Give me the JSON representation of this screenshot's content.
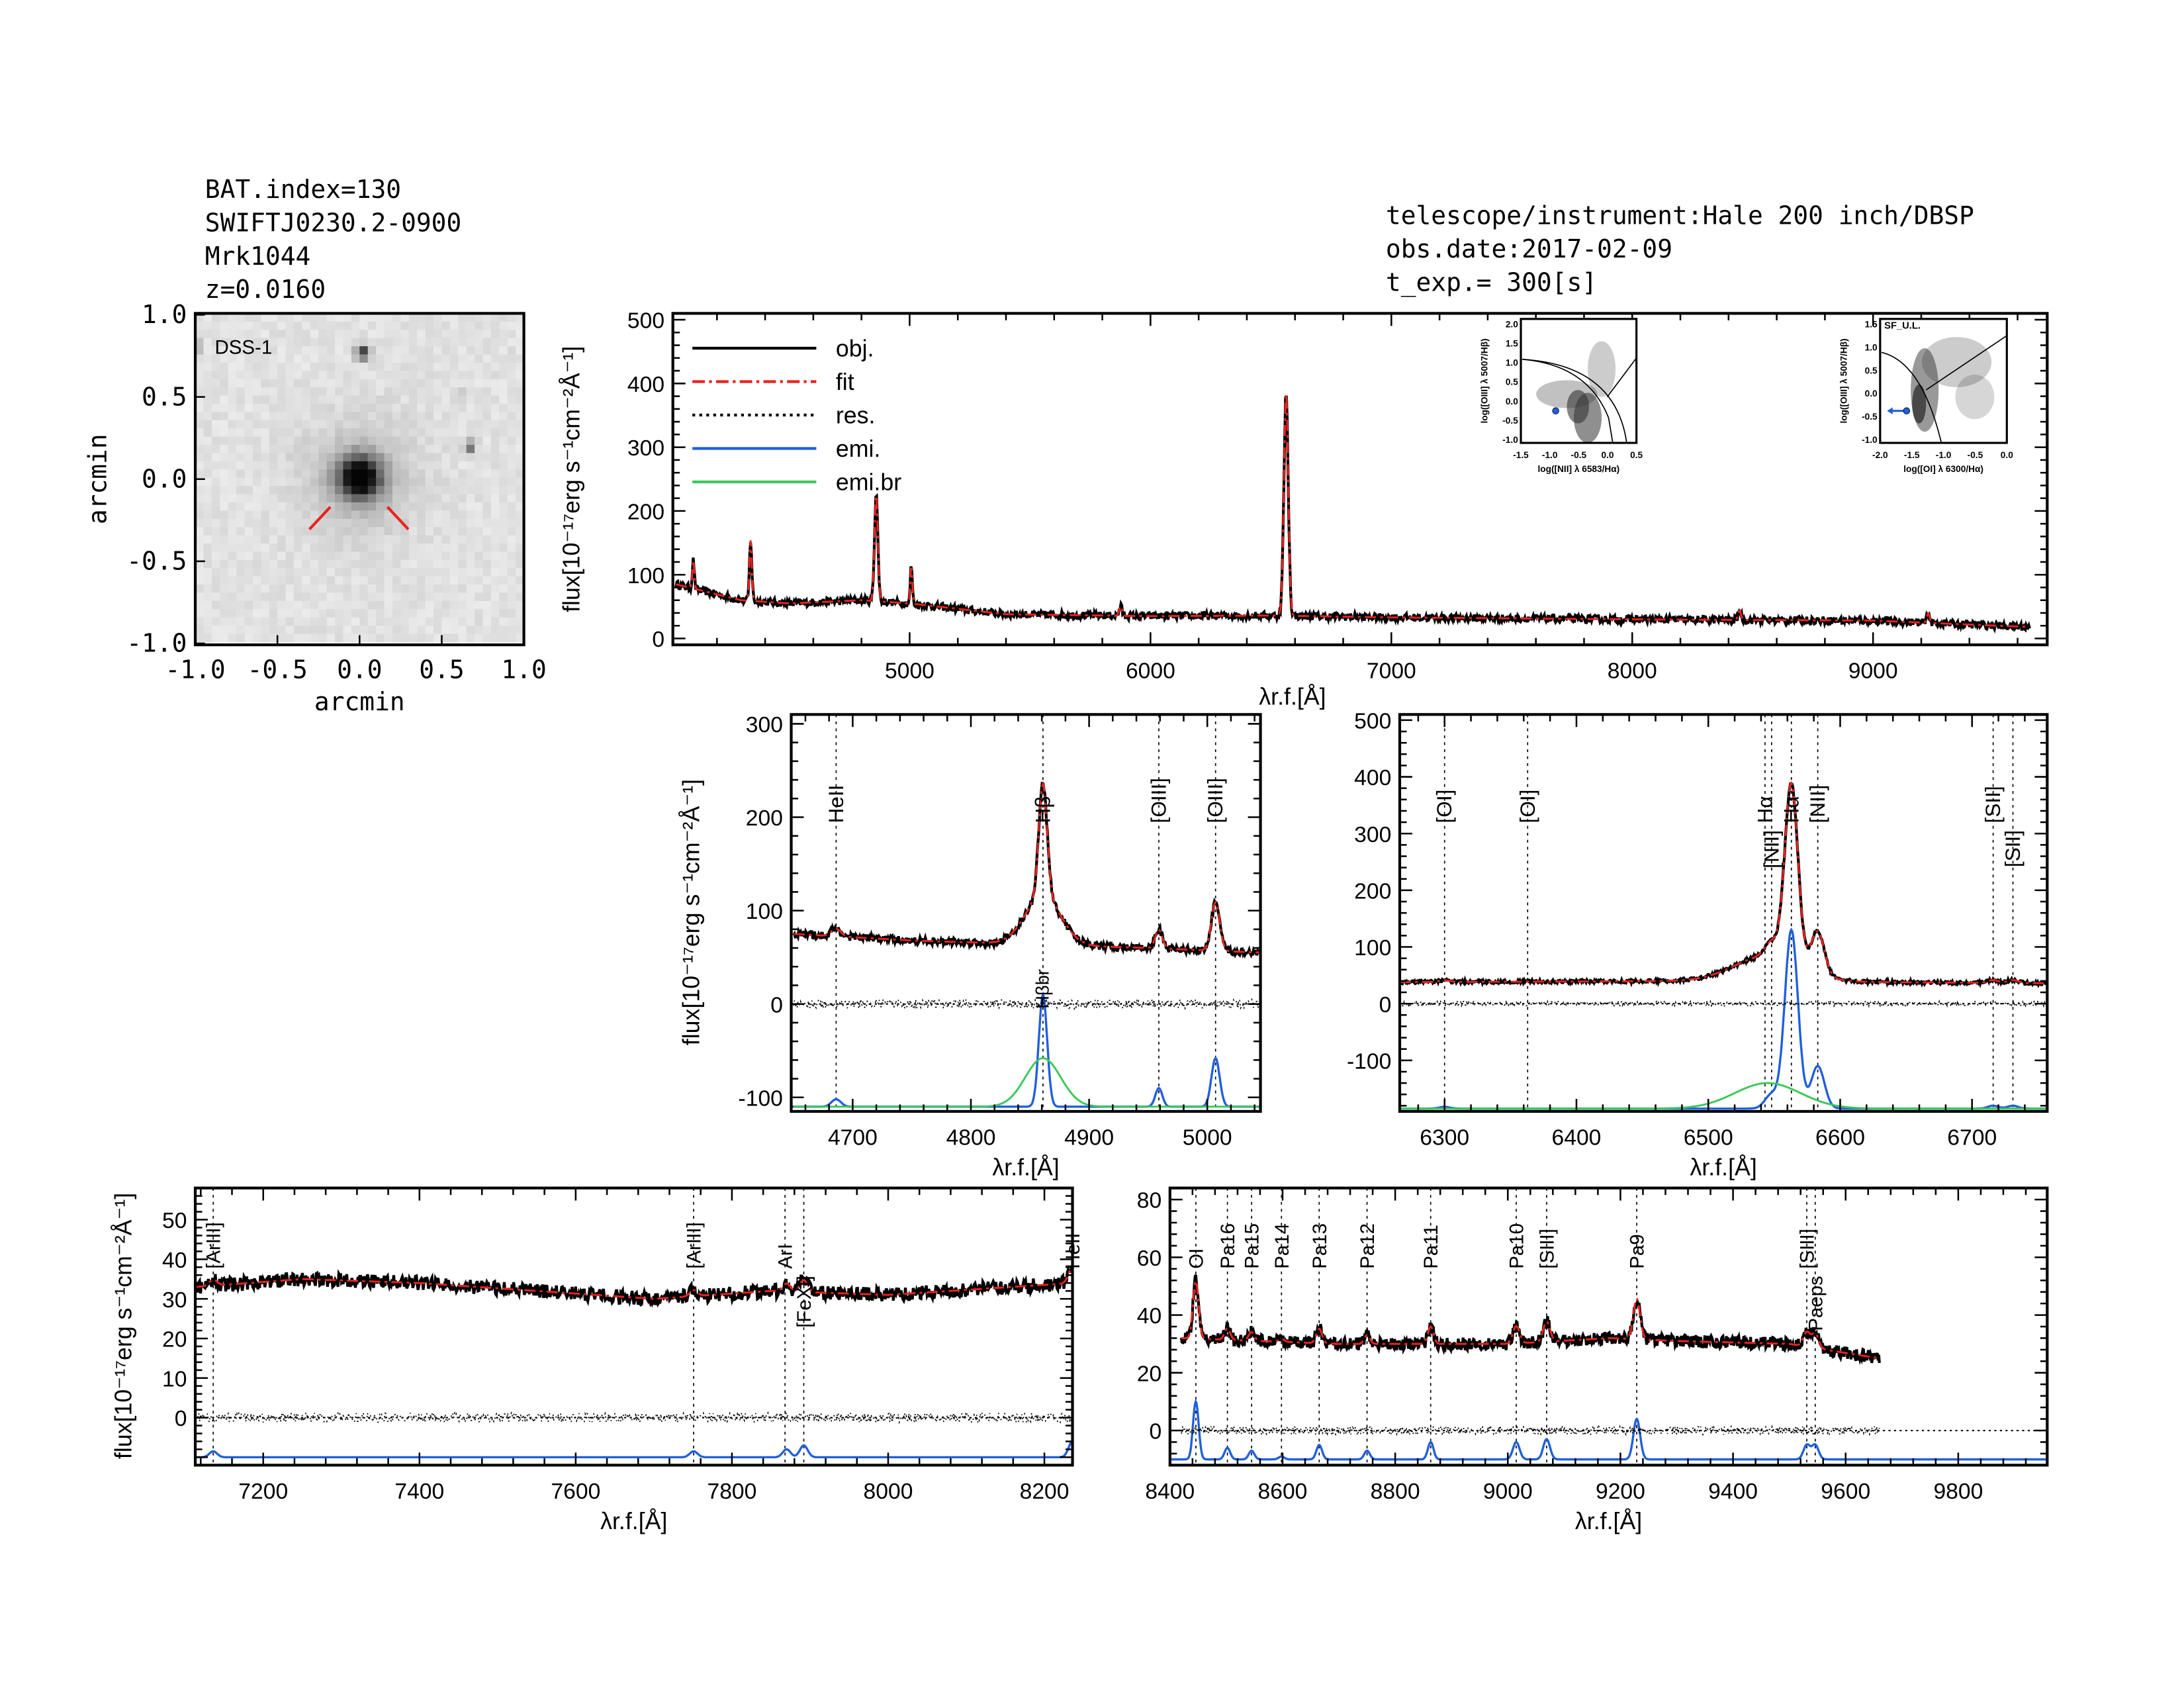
{
  "header": {
    "left": [
      "BAT.index=130",
      "SWIFTJ0230.2-0900",
      "Mrk1044",
      "z=0.0160"
    ],
    "right": [
      "telescope/instrument:Hale 200 inch/DBSP",
      "obs.date:2017-02-09",
      "t_exp.= 300[s]"
    ]
  },
  "image_panel": {
    "label": "DSS-1",
    "xlabel": "arcmin",
    "ylabel": "arcmin",
    "xticks": [
      "-1.0",
      "-0.5",
      "0.0",
      "0.5",
      "1.0"
    ],
    "yticks": [
      "1.0",
      "0.5",
      "0.0",
      "-0.5",
      "-1.0"
    ],
    "marker_color": "#e8231f"
  },
  "colors": {
    "obj": "#000000",
    "fit": "#e8231f",
    "res": "#000000",
    "emi": "#1f5fdc",
    "emi_br": "#3cc85a",
    "red_label": "#e8231f"
  },
  "insets": [
    {
      "xlabel": "log([NII] λ 6583/Hα)",
      "ylabel": "log([OIII] λ 5007/Hβ)",
      "xticks": [
        "-1.5",
        "-1.0",
        "-0.5",
        "0.0",
        "0.5"
      ],
      "yticks": [
        "2.0",
        "1.5",
        "1.0",
        "0.5",
        "0.0",
        "-0.5",
        "-1.0"
      ],
      "point": [
        -0.7,
        -0.38
      ],
      "upper_limit": false
    },
    {
      "xlabel": "log([OI] λ 6300/Hα)",
      "ylabel": "log([OIII] λ 5007/Hβ)",
      "xticks": [
        "-2.0",
        "-1.5",
        "-1.0",
        "-0.5",
        "0.0"
      ],
      "yticks": [
        "1.5",
        "1.0",
        "0.5",
        "0.0",
        "-0.5",
        "-1.0"
      ],
      "point": [
        -1.75,
        -0.38
      ],
      "upper_limit": true,
      "annotation": "SF_U.L."
    }
  ],
  "chart_data": [
    {
      "id": "overview",
      "type": "line",
      "xlabel": "λr.f.[Å]",
      "ylabel": "flux[10⁻¹⁷erg s⁻¹cm⁻²Å⁻¹]",
      "xlim": [
        4017,
        9723
      ],
      "ylim": [
        -10,
        510
      ],
      "xticks": [
        5000,
        6000,
        7000,
        8000,
        9000
      ],
      "yticks": [
        0,
        100,
        200,
        300,
        400,
        500
      ],
      "legend": [
        {
          "label": "obj."
        },
        {
          "label": "fit"
        },
        {
          "label": "res."
        },
        {
          "label": "emi."
        },
        {
          "label": "emi.br"
        }
      ],
      "legend_position": "top-left",
      "data_range": [
        4030,
        9650
      ],
      "continuum": [
        [
          4030,
          85
        ],
        [
          4300,
          60
        ],
        [
          4500,
          55
        ],
        [
          4800,
          60
        ],
        [
          5000,
          55
        ],
        [
          5400,
          38
        ],
        [
          6000,
          35
        ],
        [
          6500,
          36
        ],
        [
          7000,
          33
        ],
        [
          8000,
          30
        ],
        [
          9000,
          28
        ],
        [
          9650,
          18
        ]
      ],
      "lines": [
        {
          "wl": 4102,
          "amp": 45,
          "sigma": 4
        },
        {
          "wl": 4340,
          "amp": 95,
          "sigma": 5
        },
        {
          "wl": 4861,
          "amp": 170,
          "sigma": 7
        },
        {
          "wl": 5007,
          "amp": 60,
          "sigma": 4
        },
        {
          "wl": 5876,
          "amp": 15,
          "sigma": 6
        },
        {
          "wl": 6563,
          "amp": 350,
          "sigma": 9
        },
        {
          "wl": 8446,
          "amp": 15,
          "sigma": 6
        },
        {
          "wl": 9229,
          "amp": 15,
          "sigma": 6
        }
      ],
      "noise": 6
    },
    {
      "id": "hbeta",
      "type": "line",
      "xlabel": "λr.f.[Å]",
      "ylabel": "flux[10⁻¹⁷erg s⁻¹cm⁻²Å⁻¹]",
      "xlim": [
        4648,
        5045
      ],
      "ylim": [
        -115,
        310
      ],
      "xticks": [
        4700,
        4800,
        4900,
        5000
      ],
      "yticks": [
        -100,
        0,
        100,
        200,
        300
      ],
      "data_range": [
        4650,
        5045
      ],
      "continuum": [
        [
          4650,
          75
        ],
        [
          4750,
          68
        ],
        [
          4850,
          64
        ],
        [
          4950,
          60
        ],
        [
          5045,
          55
        ]
      ],
      "lines": [
        {
          "wl": 4686,
          "amp": 8,
          "sigma": 4
        },
        {
          "wl": 4861,
          "amp": 120,
          "sigma": 3.5
        },
        {
          "wl": 4959,
          "amp": 20,
          "sigma": 3
        },
        {
          "wl": 5007,
          "amp": 52,
          "sigma": 3.5
        }
      ],
      "broad_lines": [
        {
          "wl": 4861,
          "amp": 52,
          "sigma": 15
        }
      ],
      "emi_offset": -110,
      "noise": 4,
      "res_noise": 5,
      "markers": [
        {
          "label": "HeII",
          "wl": 4686,
          "red": true
        },
        {
          "label": "Hβ",
          "wl": 4861,
          "red": false
        },
        {
          "label": "[OIII]",
          "wl": 4959,
          "red": false
        },
        {
          "label": "[OIII]",
          "wl": 5007,
          "red": false
        }
      ],
      "broad_label": "Hβbr"
    },
    {
      "id": "halpha",
      "type": "line",
      "xlabel": "λr.f.[Å]",
      "ylabel": "",
      "xlim": [
        6266,
        6757
      ],
      "ylim": [
        -190,
        510
      ],
      "xticks": [
        6300,
        6400,
        6500,
        6600,
        6700
      ],
      "yticks": [
        -100,
        0,
        100,
        200,
        300,
        400,
        500
      ],
      "data_range": [
        6266,
        6757
      ],
      "continuum": [
        [
          6266,
          38
        ],
        [
          6500,
          40
        ],
        [
          6757,
          36
        ]
      ],
      "lines": [
        {
          "wl": 6300,
          "amp": 3,
          "sigma": 4
        },
        {
          "wl": 6548,
          "amp": 25,
          "sigma": 5
        },
        {
          "wl": 6563,
          "amp": 315,
          "sigma": 5
        },
        {
          "wl": 6583,
          "amp": 75,
          "sigma": 5
        },
        {
          "wl": 6716,
          "amp": 5,
          "sigma": 4
        },
        {
          "wl": 6731,
          "amp": 5,
          "sigma": 4
        }
      ],
      "broad_lines": [
        {
          "wl": 6545,
          "amp": 45,
          "sigma": 25
        }
      ],
      "emi_offset": -185,
      "noise": 3,
      "res_noise": 4,
      "markers": [
        {
          "label": "[OI]",
          "wl": 6300,
          "red": true
        },
        {
          "label": "[OI]",
          "wl": 6363,
          "red": true
        },
        {
          "label": "Hα",
          "wl": 6543,
          "red": false
        },
        {
          "label": "[NII]",
          "wl": 6548,
          "red": false
        },
        {
          "label": "Hα",
          "wl": 6563,
          "red": false
        },
        {
          "label": "[NII]",
          "wl": 6583,
          "red": false
        },
        {
          "label": "[SII]",
          "wl": 6716,
          "red": false
        },
        {
          "label": "[SII]",
          "wl": 6731,
          "red": false
        }
      ]
    },
    {
      "id": "nir1",
      "type": "line",
      "xlabel": "λr.f.[Å]",
      "ylabel": "flux[10⁻¹⁷erg s⁻¹cm⁻²Å⁻¹]",
      "xlim": [
        7113,
        8236
      ],
      "ylim": [
        -12,
        58
      ],
      "xticks": [
        7200,
        7400,
        7600,
        7800,
        8000,
        8200
      ],
      "yticks": [
        0,
        10,
        20,
        30,
        40,
        50
      ],
      "data_range": [
        7113,
        8236
      ],
      "continuum": [
        [
          7113,
          33
        ],
        [
          7250,
          35
        ],
        [
          7400,
          34
        ],
        [
          7550,
          32
        ],
        [
          7700,
          30
        ],
        [
          7850,
          32
        ],
        [
          8000,
          31
        ],
        [
          8236,
          34
        ]
      ],
      "lines": [
        {
          "wl": 7136,
          "amp": 1.5,
          "sigma": 5
        },
        {
          "wl": 7751,
          "amp": 1.5,
          "sigma": 5
        },
        {
          "wl": 7870,
          "amp": 2,
          "sigma": 5
        },
        {
          "wl": 7892,
          "amp": 3,
          "sigma": 5
        },
        {
          "wl": 8236,
          "amp": 4,
          "sigma": 5
        }
      ],
      "emi_offset": -10,
      "noise": 1.8,
      "res_noise": 1.2,
      "markers": [
        {
          "label": "[ArIII]",
          "wl": 7136,
          "red": true
        },
        {
          "label": "[ArIII]",
          "wl": 7751,
          "red": true
        },
        {
          "label": "ArI",
          "wl": 7868,
          "red": true
        },
        {
          "label": "[FeXI]",
          "wl": 7892,
          "red": false
        },
        {
          "label": "HeII",
          "wl": 8236,
          "red": false
        }
      ]
    },
    {
      "id": "nir2",
      "type": "line",
      "xlabel": "λr.f.[Å]",
      "ylabel": "",
      "xlim": [
        8400,
        9958
      ],
      "ylim": [
        -12,
        84
      ],
      "xticks": [
        8400,
        8600,
        8800,
        9000,
        9200,
        9400,
        9600,
        9800
      ],
      "yticks": [
        0,
        20,
        40,
        60,
        80
      ],
      "data_range": [
        8420,
        9660
      ],
      "continuum": [
        [
          8420,
          32
        ],
        [
          8700,
          30
        ],
        [
          9000,
          30
        ],
        [
          9180,
          32
        ],
        [
          9300,
          31
        ],
        [
          9500,
          30
        ],
        [
          9660,
          25
        ]
      ],
      "lines": [
        {
          "wl": 8446,
          "amp": 20,
          "sigma": 5
        },
        {
          "wl": 8502,
          "amp": 4,
          "sigma": 5
        },
        {
          "wl": 8545,
          "amp": 3,
          "sigma": 5
        },
        {
          "wl": 8598,
          "amp": 1,
          "sigma": 5
        },
        {
          "wl": 8665,
          "amp": 5,
          "sigma": 5
        },
        {
          "wl": 8750,
          "amp": 3,
          "sigma": 5
        },
        {
          "wl": 8863,
          "amp": 6,
          "sigma": 5
        },
        {
          "wl": 9015,
          "amp": 6,
          "sigma": 6
        },
        {
          "wl": 9069,
          "amp": 7,
          "sigma": 6
        },
        {
          "wl": 9229,
          "amp": 14,
          "sigma": 6
        },
        {
          "wl": 9531,
          "amp": 5,
          "sigma": 6
        },
        {
          "wl": 9546,
          "amp": 5,
          "sigma": 6
        }
      ],
      "emi_offset": -10,
      "noise": 2.2,
      "res_noise": 1.4,
      "markers": [
        {
          "label": "OI",
          "wl": 8446,
          "red": false
        },
        {
          "label": "Pa16",
          "wl": 8502,
          "red": false
        },
        {
          "label": "Pa15",
          "wl": 8545,
          "red": false
        },
        {
          "label": "Pa14",
          "wl": 8598,
          "red": true
        },
        {
          "label": "Pa13",
          "wl": 8665,
          "red": false
        },
        {
          "label": "Pa12",
          "wl": 8750,
          "red": true
        },
        {
          "label": "Pa11",
          "wl": 8863,
          "red": false
        },
        {
          "label": "Pa10",
          "wl": 9015,
          "red": false
        },
        {
          "label": "[SIII]",
          "wl": 9069,
          "red": false
        },
        {
          "label": "Pa9",
          "wl": 9229,
          "red": false
        },
        {
          "label": "[SIII]",
          "wl": 9531,
          "red": false
        },
        {
          "label": "Paeps",
          "wl": 9546,
          "red": false
        }
      ]
    }
  ]
}
